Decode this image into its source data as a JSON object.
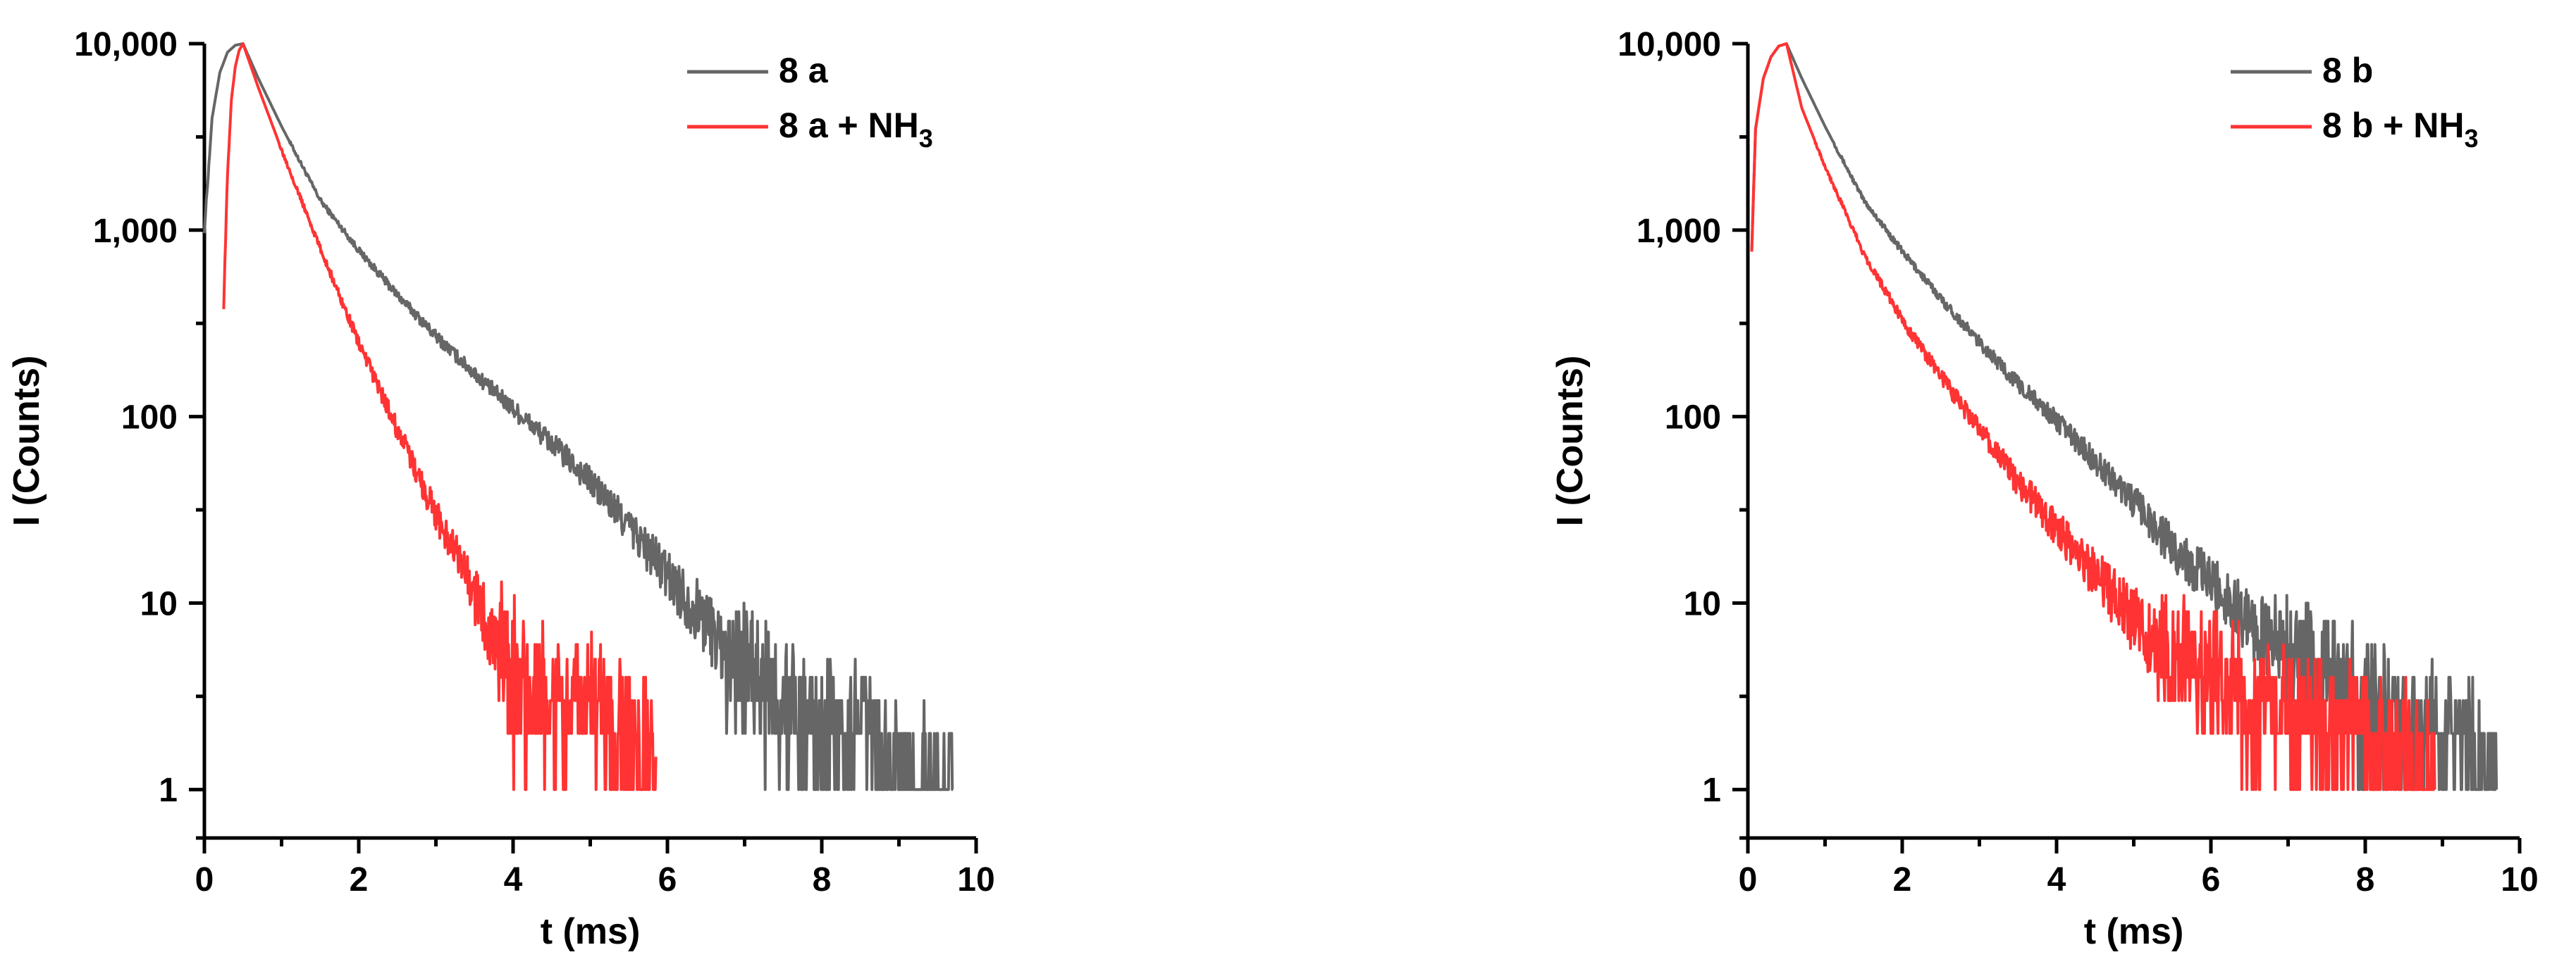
{
  "chart_data": [
    {
      "type": "line",
      "title": "",
      "xlabel": "t (ms)",
      "ylabel": "I (Counts)",
      "xlim": [
        0,
        10
      ],
      "ylim": [
        0.55,
        10000
      ],
      "yscale": "log",
      "x_ticks": [
        0,
        2,
        4,
        6,
        8,
        10
      ],
      "x_tick_labels": [
        "0",
        "2",
        "4",
        "6",
        "8",
        "10"
      ],
      "y_ticks": [
        1,
        10,
        100,
        1000,
        10000
      ],
      "y_tick_labels": [
        "1",
        "10",
        "100",
        "1,000",
        "10,000"
      ],
      "grid": false,
      "legend": "top-right",
      "series": [
        {
          "name": "8 a",
          "color": "#666666",
          "x": [
            0,
            0.1,
            0.2,
            0.3,
            0.4,
            0.5,
            0.7,
            1.0,
            1.5,
            2.0,
            2.5,
            3.0,
            3.5,
            4.0,
            4.5,
            5.0,
            5.5,
            6.0,
            6.5,
            7.0,
            7.5,
            8.0,
            8.5,
            8.9,
            9.3,
            9.7
          ],
          "y": [
            1000,
            4000,
            7000,
            9000,
            9800,
            10000,
            6500,
            3600,
            1450,
            780,
            450,
            270,
            170,
            110,
            72,
            45,
            26,
            14,
            8,
            4,
            3,
            2,
            2,
            1.5,
            1,
            1
          ]
        },
        {
          "name": "8 a + NH",
          "name_subscript": "3",
          "color": "#ff3333",
          "x": [
            0.25,
            0.3,
            0.35,
            0.4,
            0.45,
            0.5,
            0.7,
            1.0,
            1.5,
            2.0,
            2.5,
            3.0,
            3.5,
            3.8,
            4.0,
            4.2,
            4.5,
            5.0,
            5.5,
            5.85
          ],
          "y": [
            400,
            2000,
            5000,
            7500,
            9200,
            10000,
            5800,
            2700,
            800,
            250,
            85,
            30,
            11,
            6,
            4,
            3,
            3,
            2.5,
            2,
            1.5
          ]
        }
      ]
    },
    {
      "type": "line",
      "title": "",
      "xlabel": "t (ms)",
      "ylabel": "I (Counts)",
      "xlim": [
        0,
        10
      ],
      "ylim": [
        0.55,
        10000
      ],
      "yscale": "log",
      "x_ticks": [
        0,
        2,
        4,
        6,
        8,
        10
      ],
      "x_tick_labels": [
        "0",
        "2",
        "4",
        "6",
        "8",
        "10"
      ],
      "y_ticks": [
        1,
        10,
        100,
        1000,
        10000
      ],
      "y_tick_labels": [
        "1",
        "10",
        "100",
        "1,000",
        "10,000"
      ],
      "grid": false,
      "legend": "top-right",
      "series": [
        {
          "name": "8 b",
          "color": "#666666",
          "x": [
            0.05,
            0.1,
            0.2,
            0.3,
            0.4,
            0.5,
            0.7,
            1.0,
            1.5,
            2.0,
            2.5,
            3.0,
            3.5,
            4.0,
            4.5,
            5.0,
            5.5,
            6.0,
            6.5,
            7.0,
            7.5,
            8.0,
            8.5,
            9.0,
            9.5,
            9.7
          ],
          "y": [
            800,
            3500,
            6500,
            8500,
            9700,
            10000,
            6500,
            3600,
            1450,
            770,
            430,
            250,
            150,
            95,
            58,
            35,
            20,
            13,
            8,
            5,
            4,
            3,
            2,
            2,
            1.5,
            1
          ]
        },
        {
          "name": "8 b + NH",
          "name_subscript": "3",
          "color": "#ff3333",
          "x": [
            0.05,
            0.1,
            0.2,
            0.3,
            0.4,
            0.5,
            0.7,
            1.0,
            1.5,
            2.0,
            2.5,
            3.0,
            3.5,
            4.0,
            4.5,
            5.0,
            5.5,
            6.0,
            6.5,
            7.0,
            7.5,
            8.0,
            8.5,
            8.9
          ],
          "y": [
            800,
            3500,
            6500,
            8500,
            9700,
            10000,
            4500,
            2200,
            750,
            330,
            165,
            85,
            45,
            25,
            14,
            8,
            5,
            4,
            3,
            2.5,
            2,
            2,
            1.5,
            1
          ]
        }
      ]
    }
  ]
}
